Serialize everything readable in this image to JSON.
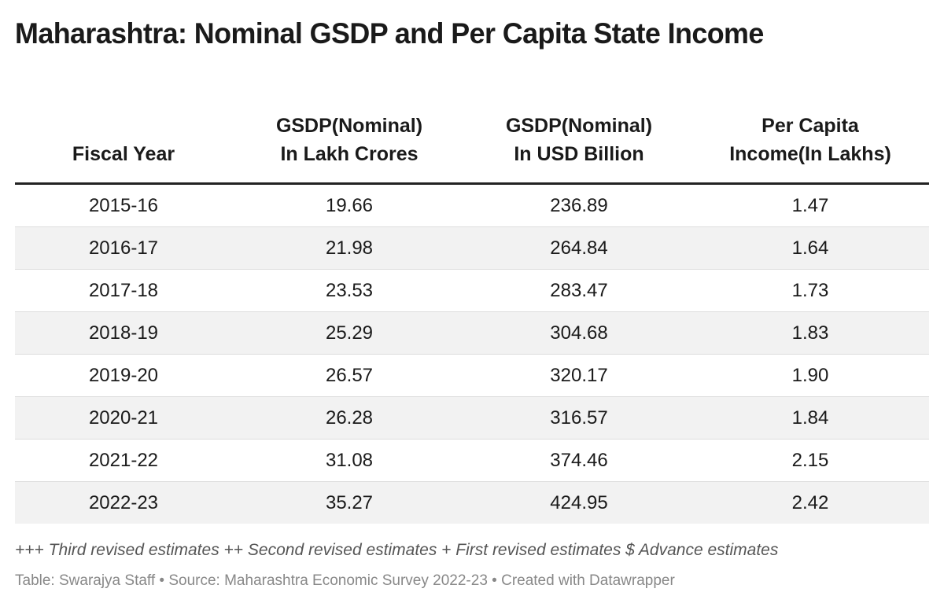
{
  "chart_data": {
    "type": "table",
    "title": "Maharashtra: Nominal GSDP and Per Capita State Income",
    "columns": [
      {
        "lines": [
          "Fiscal Year"
        ]
      },
      {
        "lines": [
          "GSDP(Nominal)",
          "In Lakh Crores"
        ]
      },
      {
        "lines": [
          "GSDP(Nominal)",
          "In USD Billion"
        ]
      },
      {
        "lines": [
          "Per Capita",
          "Income(In Lakhs)"
        ]
      }
    ],
    "rows": [
      [
        "2015-16",
        "19.66",
        "236.89",
        "1.47"
      ],
      [
        "2016-17",
        "21.98",
        "264.84",
        "1.64"
      ],
      [
        "2017-18",
        "23.53",
        "283.47",
        "1.73"
      ],
      [
        "2018-19",
        "25.29",
        "304.68",
        "1.83"
      ],
      [
        "2019-20",
        "26.57",
        "320.17",
        "1.90"
      ],
      [
        "2020-21",
        "26.28",
        "316.57",
        "1.84"
      ],
      [
        "2021-22",
        "31.08",
        "374.46",
        "2.15"
      ],
      [
        "2022-23",
        "35.27",
        "424.95",
        "2.42"
      ]
    ],
    "notes": "+++ Third revised estimates ++ Second revised estimates + First revised estimates $ Advance estimates",
    "footer": "Table: Swarajya Staff • Source: Maharashtra Economic Survey 2022-23 • Created with Datawrapper"
  }
}
